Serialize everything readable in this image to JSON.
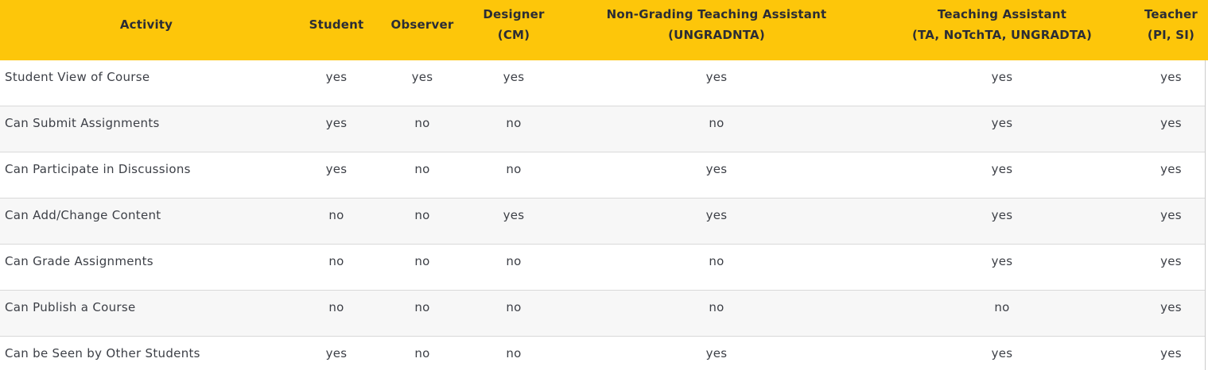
{
  "colors": {
    "header_bg": "#FDC60A",
    "header_text": "#2b2d35",
    "body_text": "#3c3f46",
    "row_alt_bg": "#f7f7f7",
    "row_border": "#d9d9d9"
  },
  "table": {
    "columns": [
      {
        "id": "activity",
        "lines": [
          "Activity"
        ]
      },
      {
        "id": "student",
        "lines": [
          "Student"
        ]
      },
      {
        "id": "observer",
        "lines": [
          "Observer"
        ]
      },
      {
        "id": "designer",
        "lines": [
          "Designer",
          "(CM)"
        ]
      },
      {
        "id": "non-grading-teaching-assistant",
        "lines": [
          "Non-Grading Teaching Assistant",
          "(UNGRADNTA)"
        ]
      },
      {
        "id": "teaching-assistant",
        "lines": [
          "Teaching Assistant",
          "(TA, NoTchTA, UNGRADTA)"
        ]
      },
      {
        "id": "teacher",
        "lines": [
          "Teacher",
          "(PI, SI)"
        ]
      }
    ],
    "rows": [
      {
        "activity": "Student View of Course",
        "values": [
          "yes",
          "yes",
          "yes",
          "yes",
          "yes",
          "yes"
        ]
      },
      {
        "activity": "Can Submit Assignments",
        "values": [
          "yes",
          "no",
          "no",
          "no",
          "yes",
          "yes"
        ]
      },
      {
        "activity": "Can Participate in Discussions",
        "values": [
          "yes",
          "no",
          "no",
          "yes",
          "yes",
          "yes"
        ]
      },
      {
        "activity": "Can Add/Change Content",
        "values": [
          "no",
          "no",
          "yes",
          "yes",
          "yes",
          "yes"
        ]
      },
      {
        "activity": "Can Grade Assignments",
        "values": [
          "no",
          "no",
          "no",
          "no",
          "yes",
          "yes"
        ]
      },
      {
        "activity": "Can Publish a Course",
        "values": [
          "no",
          "no",
          "no",
          "no",
          "no",
          "yes"
        ]
      },
      {
        "activity": "Can be Seen by Other Students",
        "values": [
          "yes",
          "no",
          "no",
          "yes",
          "yes",
          "yes"
        ]
      }
    ]
  }
}
